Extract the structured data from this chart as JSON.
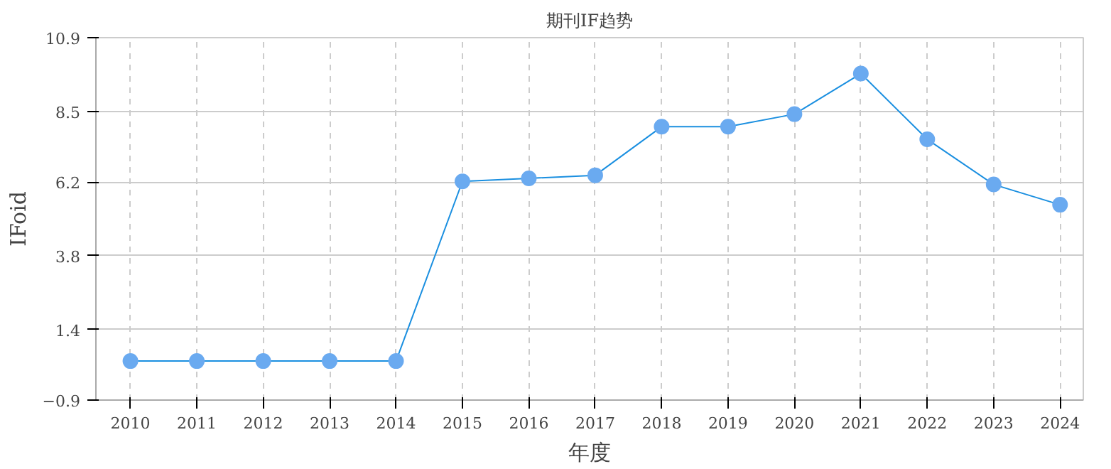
{
  "chart_data": {
    "type": "line",
    "title": "期刊IF趋势",
    "xlabel": "年度",
    "ylabel": "IFoid",
    "categories": [
      "2010",
      "2011",
      "2012",
      "2013",
      "2014",
      "2015",
      "2016",
      "2017",
      "2018",
      "2019",
      "2020",
      "2021",
      "2022",
      "2023",
      "2024"
    ],
    "series": [
      {
        "color": "#1a8fe0",
        "values": [
          0.37,
          0.37,
          0.37,
          0.37,
          0.37,
          6.22,
          6.32,
          6.42,
          8.0,
          8.0,
          8.41,
          9.73,
          7.59,
          6.12,
          5.46
        ]
      }
    ],
    "ylim": [
      -0.9,
      10.9
    ],
    "yticks": [
      -0.9,
      1.4,
      3.8,
      6.2,
      8.5,
      10.9
    ],
    "grid": true,
    "marker": "circle",
    "line_style": "solid"
  }
}
